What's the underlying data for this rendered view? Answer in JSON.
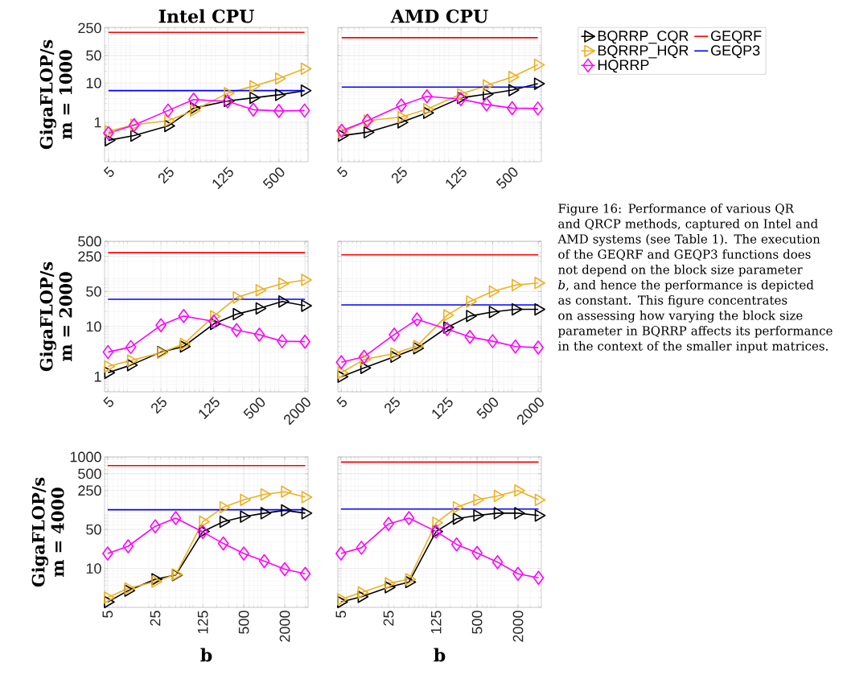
{
  "chart_data": [
    {
      "type": "line",
      "title": "Intel CPU",
      "ylabel": "GigaFLOP/s m = 1000",
      "log": "xy",
      "grid": true,
      "xlim": [
        4.5,
        1100
      ],
      "ylim": [
        0.1,
        260
      ],
      "xticks": [
        5,
        25,
        125,
        500
      ],
      "yticks": [
        1,
        10,
        50,
        250
      ],
      "x": [
        5,
        10,
        25,
        50,
        125,
        250,
        500,
        1000
      ],
      "series": [
        {
          "color": "#000000",
          "marker": "triangle",
          "values": [
            0.35,
            0.46,
            0.81,
            2.3,
            3.5,
            4.2,
            5.0,
            6.4
          ]
        },
        {
          "color": "#ff0000",
          "marker": "none",
          "x": [
            5,
            1000
          ],
          "values": [
            193,
            193
          ]
        },
        {
          "color": "#edb120",
          "marker": "triangle",
          "values": [
            0.59,
            0.87,
            1.1,
            2.0,
            5.5,
            8.3,
            13,
            23
          ]
        },
        {
          "color": "#0000ff",
          "marker": "none",
          "x": [
            5,
            1000
          ],
          "values": [
            6.4,
            6.4
          ]
        },
        {
          "color": "#ff00ff",
          "marker": "diamond",
          "values": [
            0.53,
            0.85,
            2.0,
            3.8,
            3.4,
            2.1,
            1.95,
            2.0
          ]
        }
      ]
    },
    {
      "type": "line",
      "title": "AMD CPU",
      "log": "xy",
      "grid": true,
      "tick_labels": "x",
      "legend": "right",
      "xlim": [
        4.5,
        1100
      ],
      "ylim": [
        0.1,
        260
      ],
      "xticks": [
        5,
        25,
        125,
        500
      ],
      "yticks": [
        1,
        10,
        50,
        250
      ],
      "x": [
        5,
        10,
        25,
        50,
        125,
        250,
        500,
        1000
      ],
      "series": [
        {
          "name": "BQRRP_CQR",
          "color": "#000000",
          "marker": "triangle",
          "values": [
            0.46,
            0.56,
            1.0,
            1.75,
            4.2,
            5.2,
            6.6,
            9.6
          ]
        },
        {
          "name": "GEQRF",
          "color": "#ff0000",
          "marker": "none",
          "x": [
            5,
            1000
          ],
          "values": [
            142,
            142
          ]
        },
        {
          "name": "BQRRP_HQR",
          "color": "#edb120",
          "marker": "triangle",
          "values": [
            0.56,
            1.1,
            1.36,
            2.15,
            5.2,
            8.7,
            14.2,
            29
          ]
        },
        {
          "name": "GEQP3",
          "color": "#0000ff",
          "marker": "none",
          "x": [
            5,
            1000
          ],
          "values": [
            7.9,
            7.9
          ]
        },
        {
          "name": "HQRRP",
          "color": "#ff00ff",
          "marker": "diamond",
          "values": [
            0.61,
            1.1,
            2.7,
            4.6,
            3.9,
            2.85,
            2.3,
            2.25
          ]
        }
      ]
    },
    {
      "type": "line",
      "ylabel": "GigaFLOP/s m = 2000",
      "log": "xy",
      "grid": true,
      "xlim": [
        4.5,
        2200
      ],
      "ylim": [
        0.5,
        500
      ],
      "xticks": [
        5,
        25,
        125,
        500,
        2000
      ],
      "yticks": [
        1,
        10,
        50,
        250,
        500
      ],
      "x": [
        5,
        10,
        25,
        50,
        125,
        250,
        500,
        1000,
        2000
      ],
      "series": [
        {
          "color": "#000000",
          "marker": "triangle",
          "values": [
            1.2,
            1.7,
            3.1,
            4.0,
            11.3,
            17.7,
            23,
            31.6,
            26
          ]
        },
        {
          "color": "#ff0000",
          "marker": "none",
          "x": [
            5,
            2000
          ],
          "values": [
            297,
            297
          ]
        },
        {
          "color": "#edb120",
          "marker": "triangle",
          "values": [
            1.6,
            2.1,
            3.0,
            4.5,
            16,
            38,
            53,
            72,
            85
          ]
        },
        {
          "color": "#0000ff",
          "marker": "none",
          "x": [
            5,
            2000
          ],
          "values": [
            35,
            35
          ]
        },
        {
          "color": "#ff00ff",
          "marker": "diamond",
          "values": [
            3.1,
            3.9,
            10.6,
            16.2,
            12.7,
            8.5,
            6.9,
            5.1,
            5.0
          ]
        }
      ]
    },
    {
      "type": "line",
      "log": "xy",
      "grid": true,
      "tick_labels": "x",
      "xlim": [
        4.5,
        2200
      ],
      "ylim": [
        0.5,
        500
      ],
      "xticks": [
        5,
        25,
        125,
        500,
        2000
      ],
      "yticks": [
        1,
        10,
        50,
        250,
        500
      ],
      "x": [
        5,
        10,
        25,
        50,
        125,
        250,
        500,
        1000,
        2000
      ],
      "annotations": [
        "Figure 16: Performance of various QR and QRCP methods, captured on Intel and AMD systems (see Table 1). The execution of the GEQRF and GEQP3 functions does not depend on the block size parameter *b*, and hence the performance is depicted as constant. This figure concentrates on assessing how varying the block size parameter in BQRRP affects its performance in the context of the smaller input matrices."
      ],
      "series": [
        {
          "color": "#000000",
          "marker": "triangle",
          "values": [
            1.0,
            1.5,
            2.5,
            3.7,
            9.6,
            16.2,
            19.5,
            22,
            22
          ]
        },
        {
          "color": "#ff0000",
          "marker": "none",
          "x": [
            5,
            2000
          ],
          "values": [
            270,
            270
          ]
        },
        {
          "color": "#edb120",
          "marker": "triangle",
          "values": [
            1.2,
            2.2,
            2.9,
            4.1,
            16.8,
            31.6,
            50,
            67,
            74
          ]
        },
        {
          "color": "#0000ff",
          "marker": "none",
          "x": [
            5,
            2000
          ],
          "values": [
            27,
            27
          ]
        },
        {
          "color": "#ff00ff",
          "marker": "diamond",
          "values": [
            1.95,
            2.5,
            6.9,
            13.9,
            8.9,
            6.2,
            5.1,
            4.0,
            3.8
          ]
        }
      ]
    },
    {
      "type": "line",
      "ylabel": "GigaFLOP/s m = 4000",
      "xlabel": "b",
      "log": "xy",
      "grid": true,
      "xlim": [
        4.5,
        4400
      ],
      "ylim": [
        2,
        1000
      ],
      "xticks": [
        5,
        25,
        125,
        500,
        2000
      ],
      "yticks": [
        10,
        50,
        250,
        500,
        1000
      ],
      "x": [
        5,
        10,
        25,
        50,
        125,
        250,
        500,
        1000,
        2000,
        4000
      ],
      "series": [
        {
          "color": "#000000",
          "marker": "triangle",
          "values": [
            2.5,
            4.0,
            6.4,
            7.6,
            46,
            69,
            85,
            98,
            110,
            98
          ]
        },
        {
          "color": "#ff0000",
          "marker": "none",
          "x": [
            5,
            4000
          ],
          "values": [
            700,
            700
          ]
        },
        {
          "color": "#edb120",
          "marker": "triangle",
          "values": [
            3.0,
            4.4,
            5.8,
            7.8,
            69,
            125,
            170,
            213,
            238,
            190
          ]
        },
        {
          "color": "#0000ff",
          "marker": "none",
          "x": [
            5,
            4000
          ],
          "values": [
            113,
            113
          ]
        },
        {
          "color": "#ff00ff",
          "marker": "diamond",
          "values": [
            18.5,
            25,
            57,
            80,
            45,
            28,
            18.5,
            13.5,
            9.7,
            8.0
          ]
        }
      ]
    },
    {
      "type": "line",
      "xlabel": "b",
      "log": "xy",
      "grid": true,
      "tick_labels": "x",
      "xlim": [
        4.5,
        4400
      ],
      "ylim": [
        2,
        1000
      ],
      "xticks": [
        5,
        25,
        125,
        500,
        2000
      ],
      "yticks": [
        10,
        50,
        250,
        500,
        1000
      ],
      "x": [
        5,
        10,
        25,
        50,
        125,
        250,
        500,
        1000,
        2000,
        4000
      ],
      "series": [
        {
          "color": "#000000",
          "marker": "triangle",
          "values": [
            2.5,
            3.1,
            4.6,
            5.7,
            46,
            78,
            89,
            98,
            98,
            89
          ]
        },
        {
          "color": "#ff0000",
          "marker": "none",
          "x": [
            5,
            4000
          ],
          "values": [
            810,
            810
          ]
        },
        {
          "color": "#edb120",
          "marker": "triangle",
          "values": [
            2.8,
            3.7,
            5.4,
            6.4,
            66,
            125,
            170,
            200,
            250,
            170
          ]
        },
        {
          "color": "#0000ff",
          "marker": "none",
          "x": [
            5,
            4000
          ],
          "values": [
            116,
            116
          ]
        },
        {
          "color": "#ff00ff",
          "marker": "diamond",
          "values": [
            18.5,
            23.5,
            63,
            80,
            46,
            27,
            19,
            13,
            8.0,
            6.8
          ]
        }
      ]
    }
  ]
}
